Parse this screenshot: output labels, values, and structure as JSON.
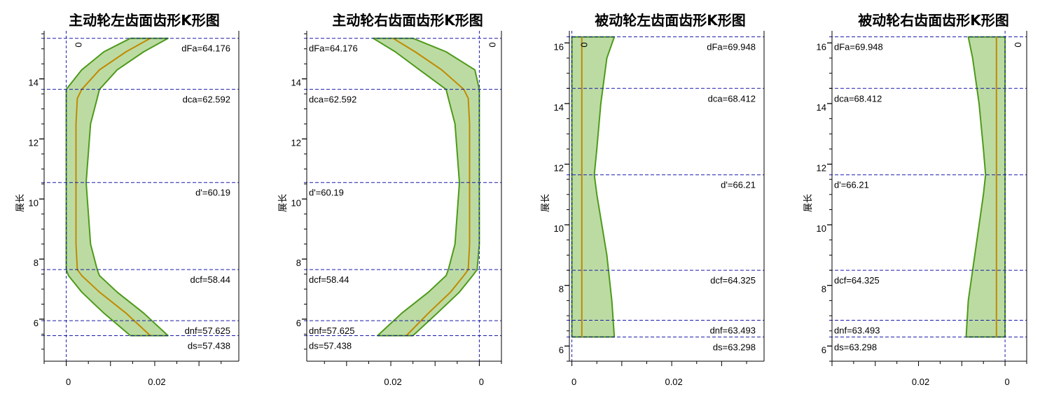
{
  "colors": {
    "band_fill": "#bcdba3",
    "band_edge": "#4e9a1a",
    "center_line": "#c08a00",
    "ref_line": "#1a1aaa",
    "axis": "#000000"
  },
  "chart_data": [
    {
      "type": "area",
      "title": "主动轮左齿面齿形K形图",
      "ylabel": "展长",
      "xlabel": "",
      "orientation": "zero-left",
      "xlim": [
        -0.005,
        0.039
      ],
      "ylim": [
        4.6,
        15.6
      ],
      "x_ticks": [
        {
          "v": 0,
          "label": "0"
        },
        {
          "v": 0.02,
          "label": "0.02"
        }
      ],
      "y_ticks": [
        {
          "v": 6,
          "label": "6"
        },
        {
          "v": 8,
          "label": "8"
        },
        {
          "v": 10,
          "label": "10"
        },
        {
          "v": 12,
          "label": "12"
        },
        {
          "v": 14,
          "label": "14"
        }
      ],
      "zero_marker": "0",
      "reference_lines": [
        {
          "y": 15.35,
          "label": "dFa=64.176"
        },
        {
          "y": 13.65,
          "label": "dca=62.592"
        },
        {
          "y": 10.55,
          "label": "d'=60.19"
        },
        {
          "y": 7.65,
          "label": "dcf=58.44"
        },
        {
          "y": 5.95,
          "label": "dnf=57.625"
        },
        {
          "y": 5.45,
          "label": "ds=57.438"
        }
      ],
      "band": {
        "y": [
          5.45,
          6.2,
          6.9,
          7.45,
          7.65,
          8.5,
          10.55,
          12.5,
          13.35,
          13.65,
          14.3,
          14.9,
          15.35
        ],
        "lower": [
          0.0145,
          0.0085,
          0.0035,
          0.0005,
          0.0,
          0.0,
          0.0,
          0.0,
          0.0,
          0.0,
          0.0035,
          0.0085,
          0.0145
        ],
        "center": [
          0.019,
          0.0135,
          0.0075,
          0.0035,
          0.0025,
          0.0022,
          0.0022,
          0.0022,
          0.0025,
          0.0035,
          0.0075,
          0.0135,
          0.019
        ],
        "upper": [
          0.023,
          0.0175,
          0.0115,
          0.0075,
          0.007,
          0.0055,
          0.0045,
          0.0055,
          0.007,
          0.0075,
          0.0115,
          0.0175,
          0.023
        ]
      }
    },
    {
      "type": "area",
      "title": "主动轮右齿面齿形K形图",
      "ylabel": "展长",
      "xlabel": "",
      "orientation": "zero-right",
      "xlim": [
        -0.005,
        0.039
      ],
      "ylim": [
        4.6,
        15.6
      ],
      "x_ticks": [
        {
          "v": 0,
          "label": "0"
        },
        {
          "v": 0.02,
          "label": "0.02"
        }
      ],
      "y_ticks": [
        {
          "v": 6,
          "label": "6"
        },
        {
          "v": 8,
          "label": "8"
        },
        {
          "v": 10,
          "label": "10"
        },
        {
          "v": 12,
          "label": "12"
        },
        {
          "v": 14,
          "label": "14"
        }
      ],
      "zero_marker": "0",
      "reference_lines": [
        {
          "y": 15.35,
          "label": "dFa=64.176"
        },
        {
          "y": 13.65,
          "label": "dca=62.592"
        },
        {
          "y": 10.55,
          "label": "d'=60.19"
        },
        {
          "y": 7.65,
          "label": "dcf=58.44"
        },
        {
          "y": 5.95,
          "label": "dnf=57.625"
        },
        {
          "y": 5.45,
          "label": "ds=57.438"
        }
      ],
      "band": {
        "y": [
          5.45,
          6.2,
          6.9,
          7.45,
          7.65,
          8.5,
          10.55,
          12.5,
          13.35,
          13.65,
          14.3,
          14.9,
          15.35
        ],
        "lower": [
          0.015,
          0.0095,
          0.0045,
          0.0015,
          0.0005,
          0.0,
          0.0,
          0.0,
          0.0,
          0.0,
          0.001,
          0.0075,
          0.015
        ],
        "center": [
          0.0165,
          0.0115,
          0.0065,
          0.0035,
          0.0025,
          0.0022,
          0.0022,
          0.0022,
          0.0025,
          0.0035,
          0.0085,
          0.0145,
          0.0195
        ],
        "upper": [
          0.023,
          0.0175,
          0.0115,
          0.0075,
          0.007,
          0.0055,
          0.0045,
          0.0055,
          0.007,
          0.0075,
          0.0135,
          0.019,
          0.024
        ]
      }
    },
    {
      "type": "area",
      "title": "被动轮左齿面齿形K形图",
      "ylabel": "展长",
      "xlabel": "",
      "orientation": "zero-left",
      "xlim": [
        -0.0005,
        0.0385
      ],
      "ylim": [
        5.5,
        16.4
      ],
      "x_ticks": [
        {
          "v": 0,
          "label": "0"
        },
        {
          "v": 0.02,
          "label": "0.02"
        }
      ],
      "y_ticks": [
        {
          "v": 6,
          "label": "6"
        },
        {
          "v": 8,
          "label": "8"
        },
        {
          "v": 10,
          "label": "10"
        },
        {
          "v": 12,
          "label": "12"
        },
        {
          "v": 14,
          "label": "14"
        },
        {
          "v": 16,
          "label": "16"
        }
      ],
      "zero_marker": "0",
      "reference_lines": [
        {
          "y": 16.2,
          "label": "dFa=69.948"
        },
        {
          "y": 14.5,
          "label": "dca=68.412"
        },
        {
          "y": 11.65,
          "label": "d'=66.21"
        },
        {
          "y": 8.5,
          "label": "dcf=64.325"
        },
        {
          "y": 6.85,
          "label": "dnf=63.493"
        },
        {
          "y": 6.3,
          "label": "ds=63.298"
        }
      ],
      "band": {
        "y": [
          6.3,
          7.5,
          9.0,
          11.0,
          11.65,
          12.5,
          14.0,
          15.5,
          16.2
        ],
        "lower": [
          0,
          0,
          0,
          0,
          0,
          0,
          0,
          0,
          0
        ],
        "center": [
          0.002,
          0.002,
          0.002,
          0.002,
          0.002,
          0.002,
          0.002,
          0.002,
          0.002
        ],
        "upper": [
          0.0085,
          0.008,
          0.007,
          0.005,
          0.0045,
          0.005,
          0.0058,
          0.007,
          0.0085
        ]
      }
    },
    {
      "type": "area",
      "title": "被动轮右齿面齿形K形图",
      "ylabel": "展长",
      "xlabel": "",
      "orientation": "zero-right",
      "xlim": [
        -0.005,
        0.04
      ],
      "ylim": [
        5.5,
        16.4
      ],
      "x_ticks": [
        {
          "v": 0,
          "label": "0"
        },
        {
          "v": 0.02,
          "label": "0.02"
        }
      ],
      "y_ticks": [
        {
          "v": 6,
          "label": "6"
        },
        {
          "v": 8,
          "label": "8"
        },
        {
          "v": 10,
          "label": "10"
        },
        {
          "v": 12,
          "label": "12"
        },
        {
          "v": 14,
          "label": "14"
        },
        {
          "v": 16,
          "label": "16"
        }
      ],
      "zero_marker": "0",
      "reference_lines": [
        {
          "y": 16.2,
          "label": "dFa=69.948"
        },
        {
          "y": 14.5,
          "label": "dca=68.412"
        },
        {
          "y": 11.65,
          "label": "d'=66.21"
        },
        {
          "y": 8.5,
          "label": "dcf=64.325"
        },
        {
          "y": 6.85,
          "label": "dnf=63.493"
        },
        {
          "y": 6.3,
          "label": "ds=63.298"
        }
      ],
      "band": {
        "y": [
          6.3,
          7.5,
          9.0,
          11.0,
          11.65,
          12.5,
          14.0,
          15.5,
          16.2
        ],
        "lower": [
          0,
          0,
          0,
          0,
          0,
          0,
          0,
          0,
          0
        ],
        "center": [
          0.002,
          0.002,
          0.002,
          0.002,
          0.002,
          0.002,
          0.002,
          0.002,
          0.002
        ],
        "upper": [
          0.009,
          0.0085,
          0.007,
          0.005,
          0.0045,
          0.005,
          0.006,
          0.0075,
          0.0085
        ]
      }
    }
  ]
}
